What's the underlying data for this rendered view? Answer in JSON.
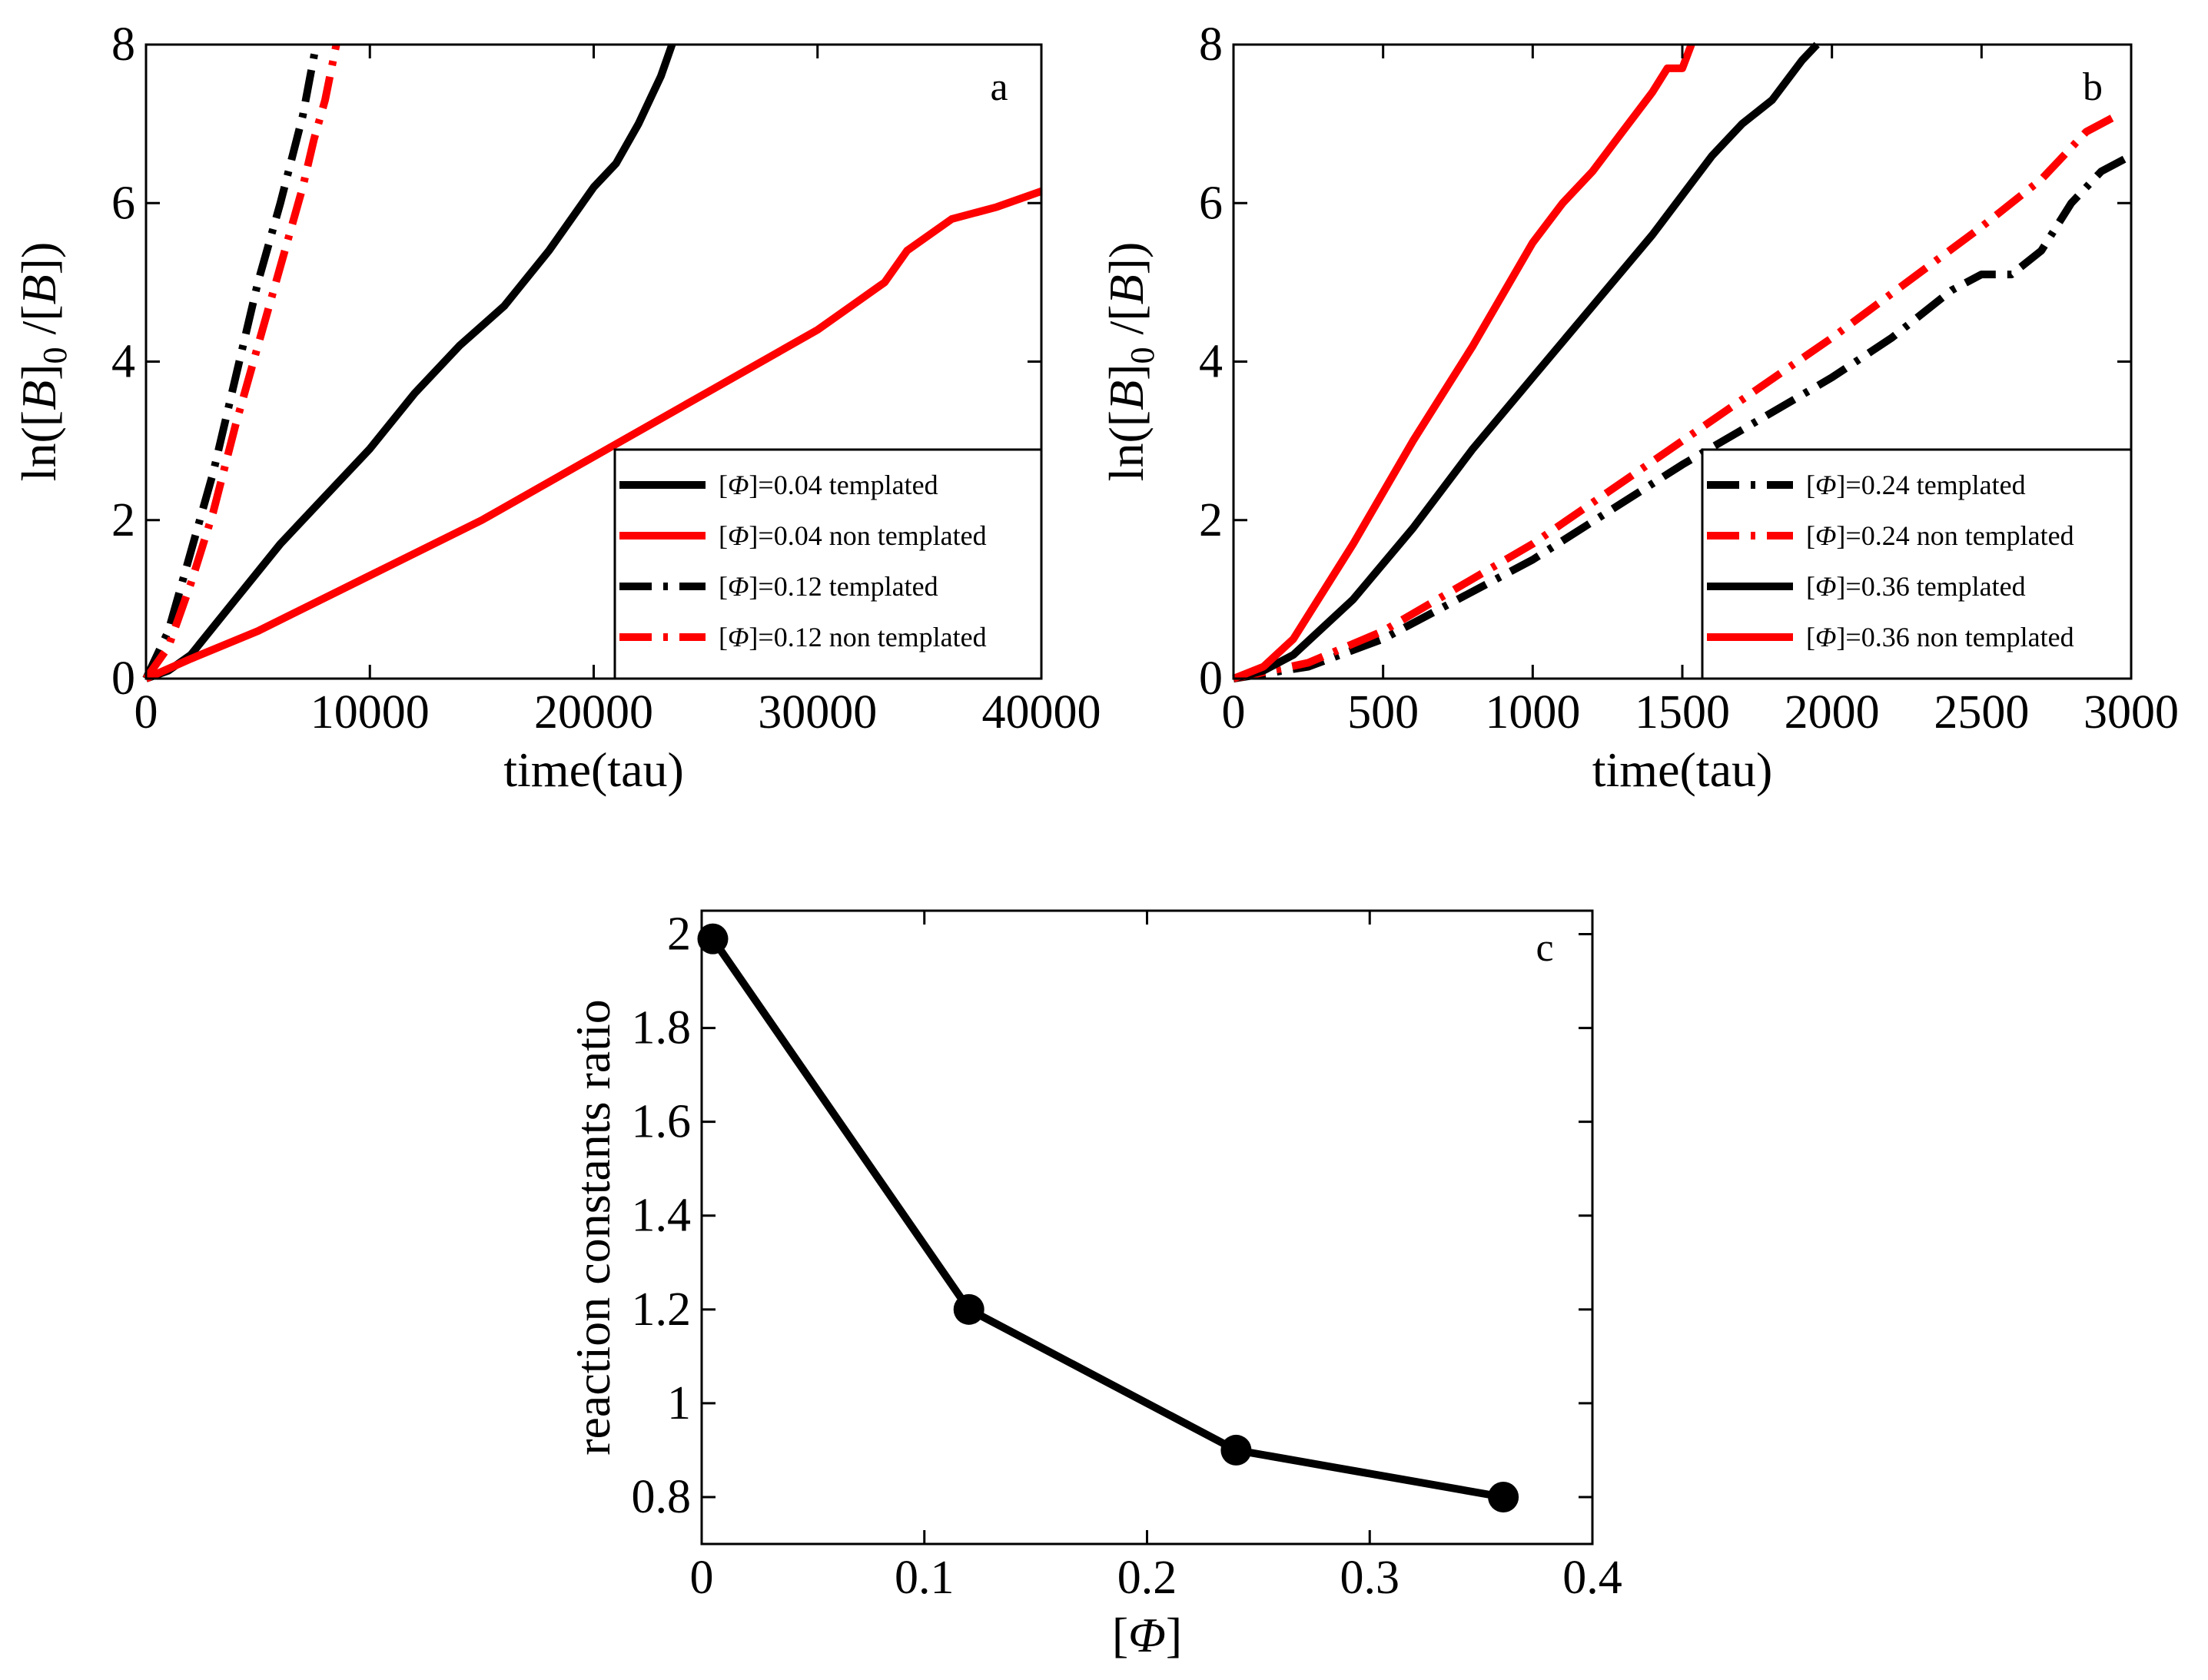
{
  "figure": {
    "description_free": true
  },
  "chart_data": [
    {
      "id": "a",
      "type": "line",
      "panel_label": "a",
      "xlabel": "time(tau)",
      "ylabel_parts": [
        "ln([",
        "B",
        "]",
        "0",
        " /[",
        "B",
        "])"
      ],
      "xlim": [
        0,
        40000
      ],
      "ylim": [
        0,
        8
      ],
      "x_ticks": [
        0,
        10000,
        20000,
        30000,
        40000
      ],
      "x_tick_labels": [
        "0",
        "10000",
        "20000",
        "30000",
        "40000"
      ],
      "y_ticks": [
        0,
        2,
        4,
        6,
        8
      ],
      "y_tick_labels": [
        "0",
        "2",
        "4",
        "6",
        "8"
      ],
      "legend_position": "bottom-right",
      "series": [
        {
          "name": "[Φ]=0.04 templated",
          "phi": "Φ",
          "prefix": "[",
          "suffix": "]=0.04 templated",
          "color": "#000000",
          "style": "solid",
          "x": [
            0,
            1000,
            2000,
            4000,
            6000,
            8000,
            10000,
            12000,
            14000,
            16000,
            18000,
            20000,
            21000,
            22000,
            22500,
            23000,
            23500
          ],
          "y": [
            0,
            0.1,
            0.3,
            1.0,
            1.7,
            2.3,
            2.9,
            3.6,
            4.2,
            4.7,
            5.4,
            6.2,
            6.5,
            7.0,
            7.3,
            7.6,
            8.0
          ]
        },
        {
          "name": "[Φ]=0.04 non templated",
          "phi": "Φ",
          "prefix": "[",
          "suffix": "]=0.04 non templated",
          "color": "#ff0000",
          "style": "solid",
          "x": [
            0,
            2000,
            5000,
            10000,
            15000,
            20000,
            25000,
            30000,
            33000,
            34000,
            36000,
            38000,
            40000
          ],
          "y": [
            0,
            0.25,
            0.6,
            1.3,
            2.0,
            2.8,
            3.6,
            4.4,
            5.0,
            5.4,
            5.8,
            5.95,
            6.15
          ]
        },
        {
          "name": "[Φ]=0.12 templated",
          "phi": "Φ",
          "prefix": "[",
          "suffix": "]=0.12 templated",
          "color": "#000000",
          "style": "dashdot",
          "x": [
            0,
            1000,
            2000,
            3000,
            4000,
            5000,
            6000,
            7000,
            7600
          ],
          "y": [
            0,
            0.6,
            1.6,
            2.6,
            3.8,
            5.0,
            6.0,
            7.1,
            8.0
          ]
        },
        {
          "name": "[Φ]=0.12 non templated",
          "phi": "Φ",
          "prefix": "[",
          "suffix": "]=0.12 non templated",
          "color": "#ff0000",
          "style": "dashdot",
          "x": [
            0,
            1000,
            2000,
            3000,
            4000,
            5000,
            6000,
            7000,
            7500,
            8000,
            8500
          ],
          "y": [
            0,
            0.4,
            1.2,
            2.1,
            3.2,
            4.2,
            5.2,
            6.2,
            6.8,
            7.3,
            8.0
          ]
        }
      ]
    },
    {
      "id": "b",
      "type": "line",
      "panel_label": "b",
      "xlabel": "time(tau)",
      "ylabel_parts": [
        "ln([",
        "B",
        "]",
        "0",
        " /[",
        "B",
        "])"
      ],
      "xlim": [
        0,
        3000
      ],
      "ylim": [
        0,
        8
      ],
      "x_ticks": [
        0,
        500,
        1000,
        1500,
        2000,
        2500,
        3000
      ],
      "x_tick_labels": [
        "0",
        "500",
        "1000",
        "1500",
        "2000",
        "2500",
        "3000"
      ],
      "y_ticks": [
        0,
        2,
        4,
        6,
        8
      ],
      "y_tick_labels": [
        "0",
        "2",
        "4",
        "6",
        "8"
      ],
      "legend_position": "bottom-right",
      "series": [
        {
          "name": "[Φ]=0.24 templated",
          "phi": "Φ",
          "prefix": "[",
          "suffix": "]=0.24 templated",
          "color": "#000000",
          "style": "dashdot",
          "x": [
            0,
            250,
            500,
            1000,
            1500,
            2000,
            2200,
            2400,
            2500,
            2600,
            2700,
            2800,
            2900,
            3000
          ],
          "y": [
            0,
            0.15,
            0.5,
            1.5,
            2.7,
            3.8,
            4.3,
            4.9,
            5.1,
            5.1,
            5.4,
            6.0,
            6.4,
            6.6
          ]
        },
        {
          "name": "[Φ]=0.24 non templated",
          "phi": "Φ",
          "prefix": "[",
          "suffix": "]=0.24 non templated",
          "color": "#ff0000",
          "style": "dashdot",
          "x": [
            0,
            250,
            500,
            1000,
            1500,
            2000,
            2500,
            2700,
            2850,
            2950
          ],
          "y": [
            0,
            0.2,
            0.6,
            1.7,
            3.0,
            4.3,
            5.7,
            6.3,
            6.9,
            7.1
          ]
        },
        {
          "name": "[Φ]=0.36 templated",
          "phi": "Φ",
          "prefix": "[",
          "suffix": "]=0.36 templated",
          "color": "#000000",
          "style": "solid",
          "x": [
            0,
            100,
            200,
            400,
            600,
            800,
            1000,
            1200,
            1400,
            1600,
            1700,
            1800,
            1900,
            1950
          ],
          "y": [
            0,
            0.1,
            0.3,
            1.0,
            1.9,
            2.9,
            3.8,
            4.7,
            5.6,
            6.6,
            7.0,
            7.3,
            7.8,
            8.0
          ]
        },
        {
          "name": "[Φ]=0.36 non templated",
          "phi": "Φ",
          "prefix": "[",
          "suffix": "]=0.36 non templated",
          "color": "#ff0000",
          "style": "solid",
          "x": [
            0,
            100,
            200,
            400,
            600,
            800,
            1000,
            1100,
            1200,
            1300,
            1400,
            1450,
            1500,
            1530
          ],
          "y": [
            0,
            0.15,
            0.5,
            1.7,
            3.0,
            4.2,
            5.5,
            6.0,
            6.4,
            6.9,
            7.4,
            7.7,
            7.7,
            8.0
          ]
        }
      ]
    },
    {
      "id": "c",
      "type": "line",
      "panel_label": "c",
      "xlabel_phi": "Φ",
      "xlabel_prefix": "[",
      "xlabel_suffix": "]",
      "ylabel": "reaction constants ratio",
      "xlim": [
        0,
        0.4
      ],
      "ylim": [
        0.7,
        2.05
      ],
      "x_ticks": [
        0,
        0.1,
        0.2,
        0.3,
        0.4
      ],
      "x_tick_labels": [
        "0",
        "0.1",
        "0.2",
        "0.3",
        "0.4"
      ],
      "y_ticks": [
        0.8,
        1.0,
        1.2,
        1.4,
        1.6,
        1.8,
        2.0
      ],
      "y_tick_labels": [
        "0.8",
        "1",
        "1.2",
        "1.4",
        "1.6",
        "1.8",
        "2"
      ],
      "series": [
        {
          "name": "ratio",
          "color": "#000000",
          "style": "solid",
          "markers": true,
          "x": [
            0.005,
            0.12,
            0.24,
            0.36
          ],
          "y": [
            1.99,
            1.2,
            0.9,
            0.8
          ]
        }
      ]
    }
  ]
}
